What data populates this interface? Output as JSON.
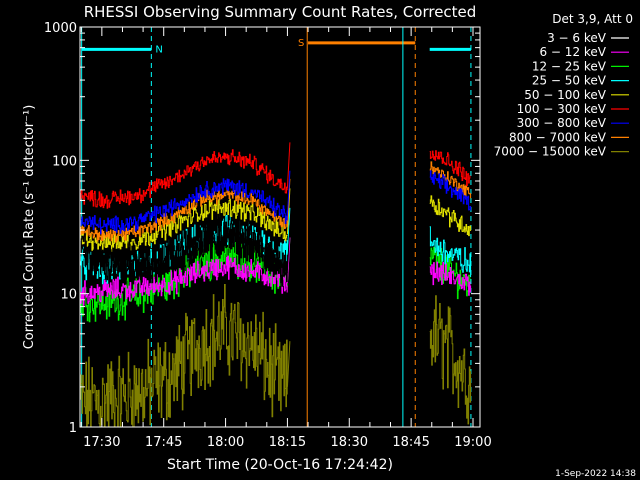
{
  "chart_data": {
    "type": "line",
    "title": "RHESSI Observing Summary Count Rates, Corrected",
    "xlabel": "Start Time (20-Oct-16 17:24:42)",
    "ylabel": "Corrected Count Rate (s⁻¹ detector⁻¹)",
    "x_unit": "minutes after 17:24:42",
    "xlim": [
      0,
      97
    ],
    "ylim": [
      1,
      1000
    ],
    "yscale": "log",
    "xticks": [
      {
        "label": "17:30",
        "x": 5.3
      },
      {
        "label": "17:45",
        "x": 20.3
      },
      {
        "label": "18:00",
        "x": 35.3
      },
      {
        "label": "18:15",
        "x": 50.3
      },
      {
        "label": "18:30",
        "x": 65.3
      },
      {
        "label": "18:45",
        "x": 80.3
      },
      {
        "label": "19:00",
        "x": 95.3
      }
    ],
    "yticks": [
      {
        "label": "1",
        "y": 1
      },
      {
        "label": "10",
        "y": 10
      },
      {
        "label": "100",
        "y": 100
      },
      {
        "label": "1000",
        "y": 1000
      }
    ],
    "legend": {
      "position": "top-right",
      "header": "Det 3,9, Att 0",
      "entries": [
        {
          "label": "3 − 6 keV",
          "color": "#000000"
        },
        {
          "label": "6 − 12 keV",
          "color": "#ff00ff"
        },
        {
          "label": "12 − 25 keV",
          "color": "#00ee00"
        },
        {
          "label": "25 − 50 keV",
          "color": "#00ffff"
        },
        {
          "label": "50 − 100 keV",
          "color": "#e0e000"
        },
        {
          "label": "100 − 300 keV",
          "color": "#ff0000"
        },
        {
          "label": "300 − 800 keV",
          "color": "#0000ff"
        },
        {
          "label": "800 − 7000 keV",
          "color": "#ff8000"
        },
        {
          "label": "7000 − 15000 keV",
          "color": "#808000"
        }
      ]
    },
    "segment_a": {
      "x_start": 0,
      "x_end": 50.3
    },
    "segment_b": {
      "x_start": 84.8,
      "x_end": 94.8
    },
    "series": [
      {
        "name": "3 − 6 keV",
        "color": "#000000",
        "noise": 0.12,
        "a": [
          [
            0,
            24
          ],
          [
            4,
            19
          ],
          [
            10,
            16
          ],
          [
            18,
            17
          ],
          [
            26,
            22
          ],
          [
            32,
            28
          ],
          [
            36,
            29
          ],
          [
            42,
            25
          ],
          [
            48,
            16
          ],
          [
            50.3,
            15
          ]
        ],
        "b": []
      },
      {
        "name": "6 − 12 keV",
        "color": "#ff00ff",
        "noise": 0.07,
        "a": [
          [
            0,
            10
          ],
          [
            6,
            10.5
          ],
          [
            14,
            11
          ],
          [
            22,
            12
          ],
          [
            30,
            15
          ],
          [
            36,
            16
          ],
          [
            42,
            14.5
          ],
          [
            48,
            13
          ],
          [
            50.3,
            12
          ]
        ],
        "b": [
          [
            84.8,
            15
          ],
          [
            88,
            14
          ],
          [
            92,
            12.5
          ],
          [
            94.8,
            12
          ]
        ]
      },
      {
        "name": "12 − 25 keV",
        "color": "#00ee00",
        "noise": 0.11,
        "a": [
          [
            0,
            9
          ],
          [
            6,
            8.5
          ],
          [
            14,
            9.5
          ],
          [
            22,
            12
          ],
          [
            30,
            17
          ],
          [
            36,
            19
          ],
          [
            42,
            17
          ],
          [
            48,
            13
          ],
          [
            50.3,
            12
          ]
        ],
        "b": [
          [
            84.8,
            19
          ],
          [
            88,
            16
          ],
          [
            92,
            13
          ],
          [
            94.8,
            11
          ]
        ]
      },
      {
        "name": "25 − 50 keV",
        "color": "#00ffff",
        "noise": 0.09,
        "a": [
          [
            0,
            17
          ],
          [
            6,
            15
          ],
          [
            14,
            16
          ],
          [
            22,
            20
          ],
          [
            30,
            27
          ],
          [
            36,
            30
          ],
          [
            42,
            27
          ],
          [
            48,
            21
          ],
          [
            50.3,
            20
          ]
        ],
        "b": [
          [
            84.8,
            25
          ],
          [
            88,
            21
          ],
          [
            92,
            18
          ],
          [
            94.8,
            16
          ]
        ]
      },
      {
        "name": "50 − 100 keV",
        "color": "#e0e000",
        "noise": 0.06,
        "a": [
          [
            0,
            26
          ],
          [
            6,
            24
          ],
          [
            14,
            25
          ],
          [
            22,
            32
          ],
          [
            30,
            42
          ],
          [
            36,
            45
          ],
          [
            42,
            40
          ],
          [
            48,
            30
          ],
          [
            50.3,
            28
          ]
        ],
        "b": [
          [
            84.8,
            50
          ],
          [
            88,
            42
          ],
          [
            92,
            34
          ],
          [
            94.8,
            30
          ]
        ]
      },
      {
        "name": "100 − 300 keV",
        "color": "#ff0000",
        "noise": 0.05,
        "a": [
          [
            0,
            55
          ],
          [
            6,
            50
          ],
          [
            14,
            55
          ],
          [
            22,
            70
          ],
          [
            30,
            100
          ],
          [
            36,
            105
          ],
          [
            42,
            95
          ],
          [
            48,
            68
          ],
          [
            50.3,
            62
          ]
        ],
        "b": [
          [
            84.8,
            120
          ],
          [
            88,
            105
          ],
          [
            92,
            85
          ],
          [
            94.8,
            70
          ]
        ]
      },
      {
        "name": "300 − 800 keV",
        "color": "#0000ff",
        "noise": 0.05,
        "a": [
          [
            0,
            36
          ],
          [
            6,
            32
          ],
          [
            14,
            35
          ],
          [
            22,
            44
          ],
          [
            30,
            60
          ],
          [
            36,
            65
          ],
          [
            42,
            58
          ],
          [
            48,
            42
          ],
          [
            50.3,
            38
          ]
        ],
        "b": [
          [
            84.8,
            75
          ],
          [
            88,
            66
          ],
          [
            92,
            55
          ],
          [
            94.8,
            47
          ]
        ]
      },
      {
        "name": "800 − 7000 keV",
        "color": "#ff8000",
        "noise": 0.04,
        "a": [
          [
            0,
            30
          ],
          [
            6,
            27
          ],
          [
            14,
            29
          ],
          [
            22,
            37
          ],
          [
            30,
            52
          ],
          [
            36,
            55
          ],
          [
            42,
            50
          ],
          [
            48,
            36
          ],
          [
            50.3,
            33
          ]
        ],
        "b": [
          [
            84.8,
            90
          ],
          [
            88,
            78
          ],
          [
            92,
            64
          ],
          [
            94.8,
            55
          ]
        ]
      },
      {
        "name": "7000 − 15000 keV",
        "color": "#808000",
        "noise": 0.28,
        "a": [
          [
            0,
            1.5
          ],
          [
            6,
            1.6
          ],
          [
            14,
            1.8
          ],
          [
            22,
            2.4
          ],
          [
            30,
            4.5
          ],
          [
            36,
            5.2
          ],
          [
            42,
            4
          ],
          [
            48,
            2.2
          ],
          [
            50.3,
            2
          ]
        ],
        "b": [
          [
            84.8,
            5
          ],
          [
            88,
            4.2
          ],
          [
            92,
            3
          ],
          [
            94.8,
            2
          ]
        ]
      }
    ],
    "markers": [
      {
        "type": "horizontal-bar",
        "label": "N",
        "x_start": 0.4,
        "x_end": 17.3,
        "y": 680,
        "color": "#00ffff"
      },
      {
        "type": "horizontal-bar",
        "label": "S",
        "x_start": 55.3,
        "x_end": 81.3,
        "y": 760,
        "color": "#ff8000"
      },
      {
        "type": "horizontal-bar",
        "label": "",
        "x_start": 84.8,
        "x_end": 94.8,
        "y": 680,
        "color": "#00ffff"
      },
      {
        "type": "vertical-line",
        "x": 0.4,
        "style": "solid",
        "color": "#00ffff"
      },
      {
        "type": "vertical-line",
        "x": 17.3,
        "style": "dashed",
        "color": "#00ffff"
      },
      {
        "type": "vertical-line",
        "x": 55.1,
        "style": "solid",
        "color": "#ff8000"
      },
      {
        "type": "vertical-line",
        "x": 78.3,
        "style": "solid",
        "color": "#00ffff"
      },
      {
        "type": "vertical-line",
        "x": 81.3,
        "style": "dashed",
        "color": "#ff8000"
      },
      {
        "type": "vertical-line",
        "x": 94.8,
        "style": "dashed",
        "color": "#00ffff"
      }
    ]
  },
  "footer": {
    "timestamp": "1-Sep-2022 14:38"
  }
}
